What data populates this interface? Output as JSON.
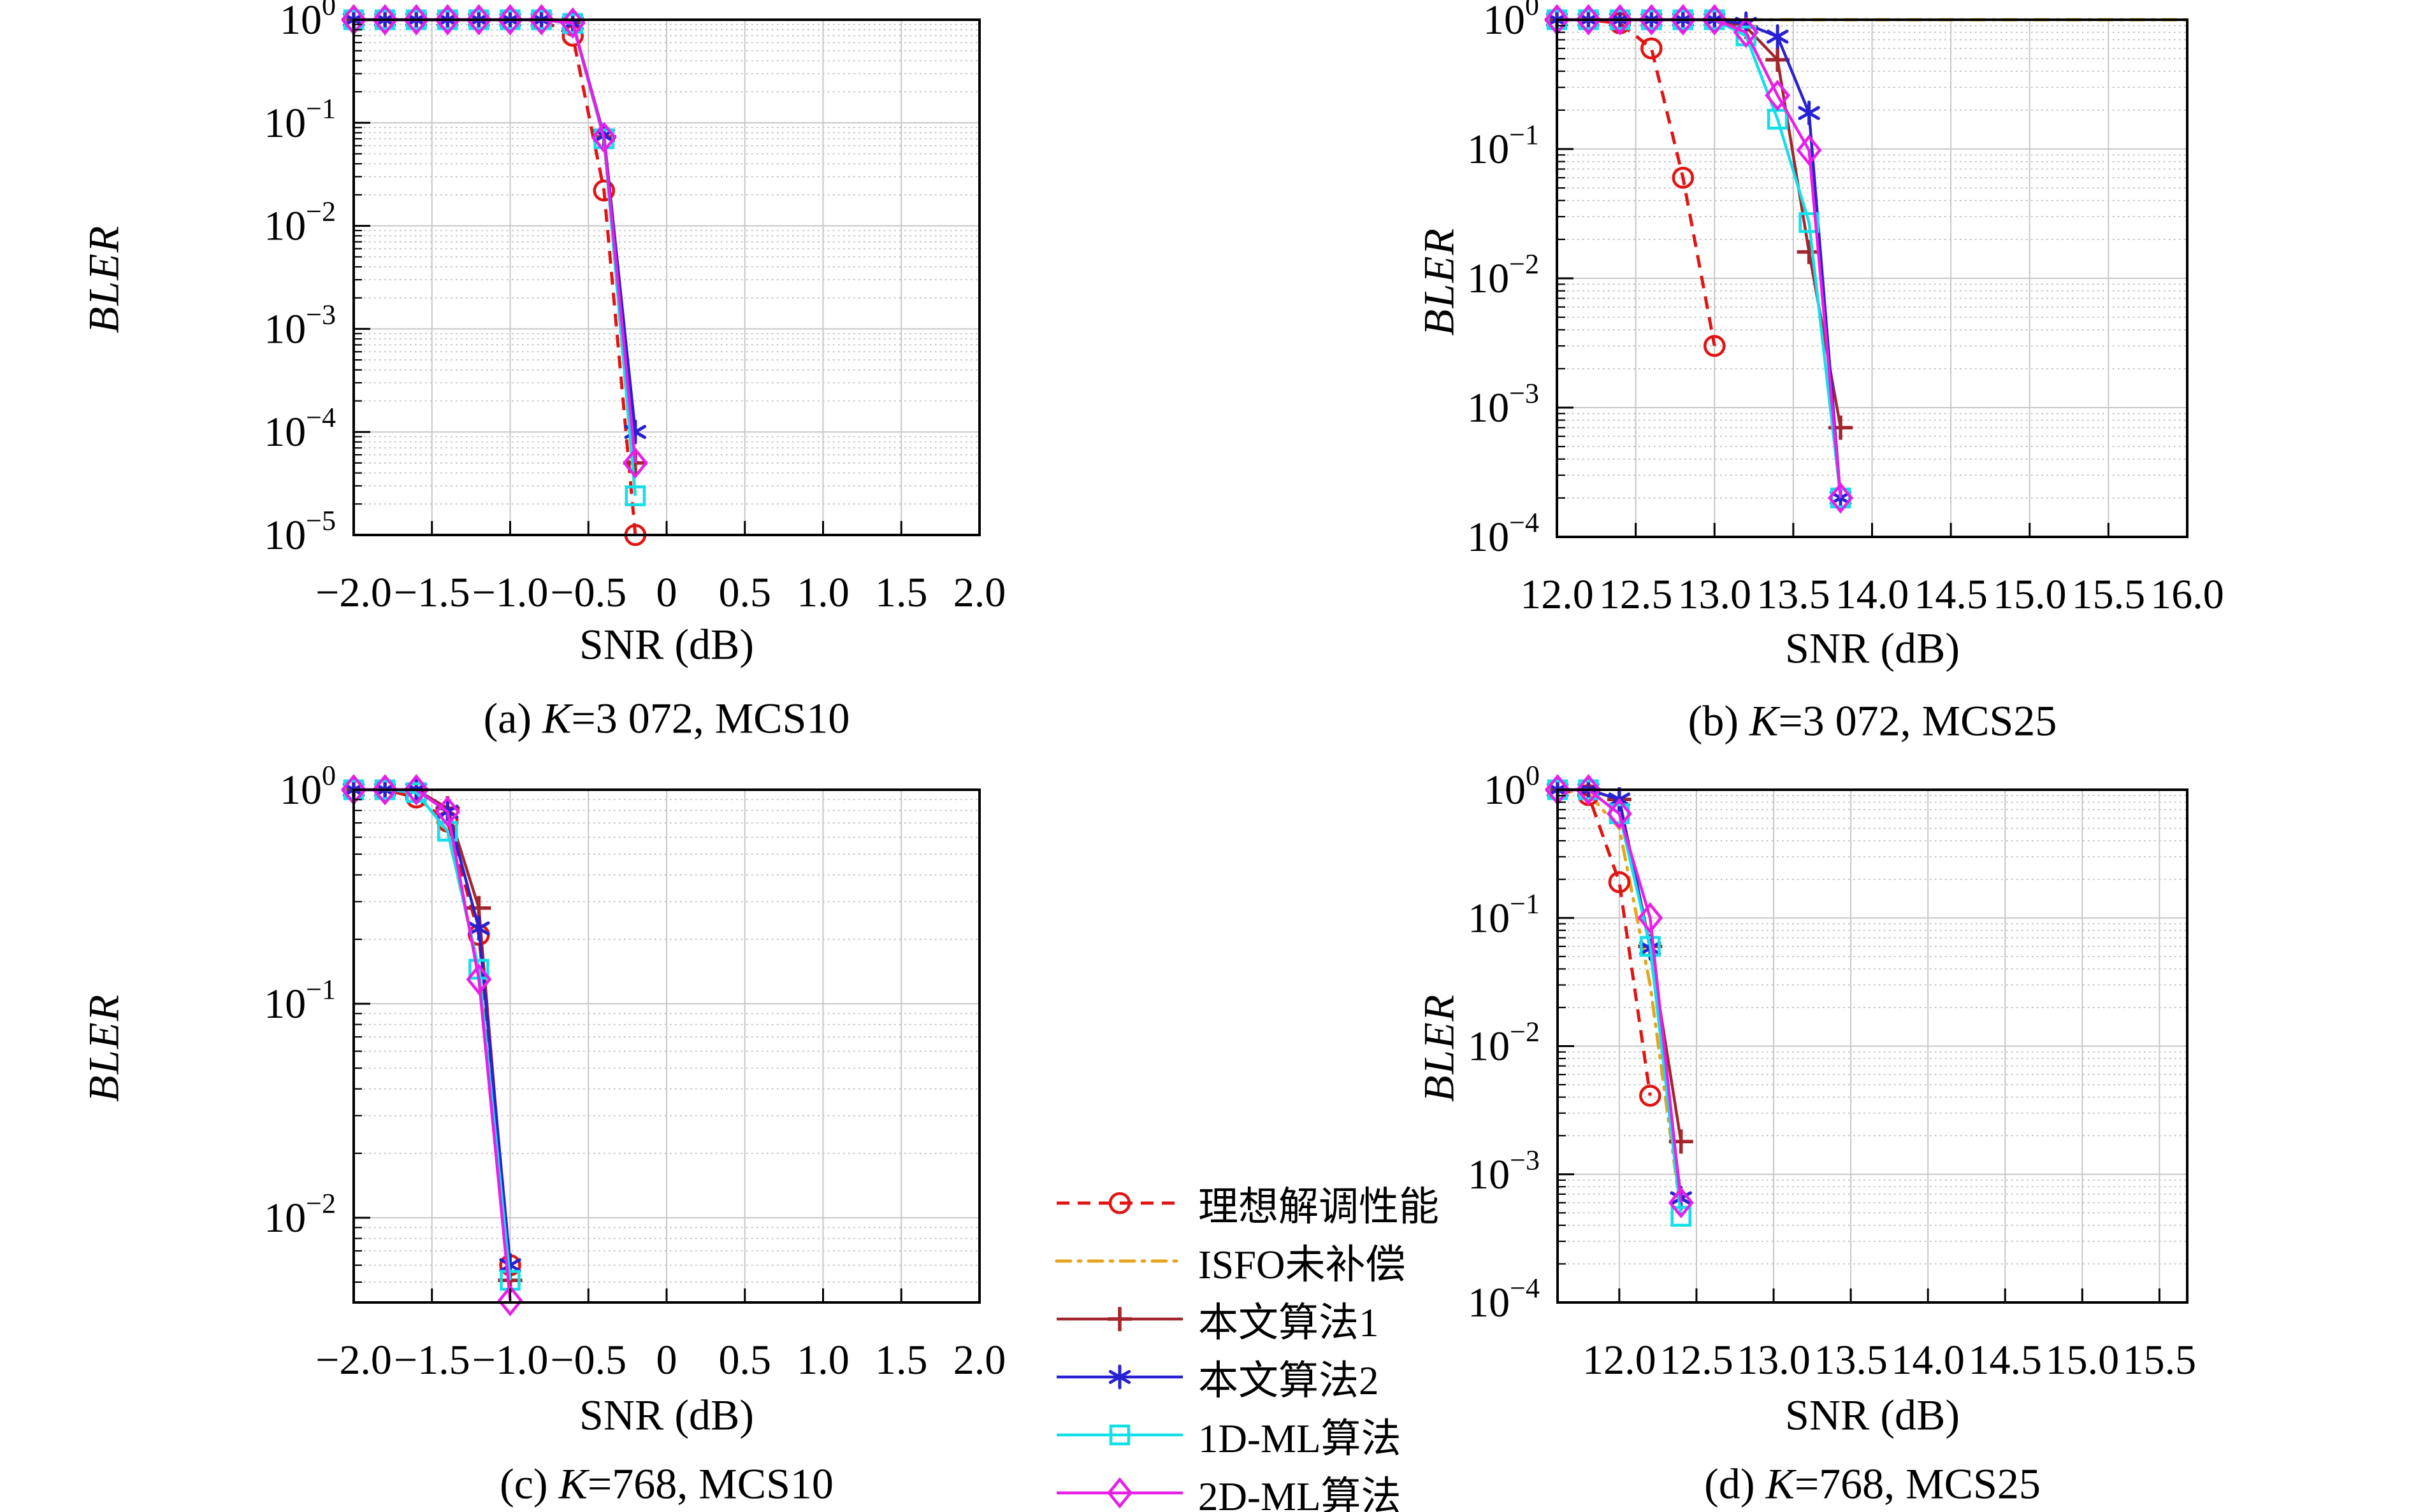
{
  "palette": {
    "ideal": "#e11414",
    "isfo": "#e5a51f",
    "alg1": "#a3262e",
    "alg2": "#2721d1",
    "ml1d": "#12dfe8",
    "ml2d": "#e81ee8",
    "frame": "#000000",
    "grid_major": "#c7c7c7",
    "grid_minor": "#b3b3b3"
  },
  "legend": {
    "items": [
      {
        "key": "ideal",
        "label": "理想解调性能",
        "marker": "circle",
        "dash": "dash"
      },
      {
        "key": "isfo",
        "label": "ISFO未补偿",
        "marker": "none",
        "dash": "dashdot"
      },
      {
        "key": "alg1",
        "label": "本文算法1",
        "marker": "plus",
        "dash": "solid"
      },
      {
        "key": "alg2",
        "label": "本文算法2",
        "marker": "asterisk",
        "dash": "solid"
      },
      {
        "key": "ml1d",
        "label": "1D-ML算法",
        "marker": "square",
        "dash": "solid"
      },
      {
        "key": "ml2d",
        "label": "2D-ML算法",
        "marker": "diamond",
        "dash": "solid"
      }
    ]
  },
  "chart_data": [
    {
      "id": "a",
      "type": "line",
      "caption_index": "(a) ",
      "caption_k": "K",
      "caption_rest": "=3 072, MCS10",
      "xlabel": "SNR (dB)",
      "ylabel": "BLER",
      "xlim": [
        -2,
        2
      ],
      "xticks": [
        -2,
        -1.5,
        -1,
        -0.5,
        0,
        0.5,
        1,
        1.5,
        2
      ],
      "xtick_labels": [
        "−2.0",
        "−1.5",
        "−1.0",
        "−0.5",
        "0",
        "0.5",
        "1.0",
        "1.5",
        "2.0"
      ],
      "ylim_exp": [
        0,
        -5
      ],
      "ytick_exps": [
        0,
        -1,
        -2,
        -3,
        -4,
        -5
      ],
      "grid": true,
      "series": [
        {
          "key": "isfo",
          "points": [
            [
              -2,
              1
            ],
            [
              -1.8,
              1
            ],
            [
              -1.6,
              1
            ],
            [
              -1.4,
              1
            ],
            [
              -1.2,
              1
            ],
            [
              -1,
              1
            ],
            [
              -0.8,
              1
            ],
            [
              -0.6,
              0.92
            ],
            [
              -0.4,
              0.07
            ],
            [
              -0.2,
              2.4e-05
            ]
          ]
        },
        {
          "key": "ideal",
          "points": [
            [
              -2,
              1
            ],
            [
              -1.8,
              1
            ],
            [
              -1.6,
              1
            ],
            [
              -1.4,
              1
            ],
            [
              -1.2,
              1
            ],
            [
              -1,
              1
            ],
            [
              -0.8,
              1
            ],
            [
              -0.6,
              0.7
            ],
            [
              -0.4,
              0.022
            ],
            [
              -0.2,
              1e-05
            ]
          ]
        },
        {
          "key": "alg1",
          "points": [
            [
              -2,
              1
            ],
            [
              -1.8,
              1
            ],
            [
              -1.6,
              1
            ],
            [
              -1.4,
              1
            ],
            [
              -1.2,
              1
            ],
            [
              -1,
              1
            ],
            [
              -0.8,
              1
            ],
            [
              -0.6,
              0.94
            ],
            [
              -0.4,
              0.073
            ],
            [
              -0.2,
              5e-05
            ]
          ]
        },
        {
          "key": "alg2",
          "points": [
            [
              -2,
              1
            ],
            [
              -1.8,
              1
            ],
            [
              -1.6,
              1
            ],
            [
              -1.4,
              1
            ],
            [
              -1.2,
              1
            ],
            [
              -1,
              1
            ],
            [
              -0.8,
              1
            ],
            [
              -0.6,
              0.93
            ],
            [
              -0.4,
              0.075
            ],
            [
              -0.2,
              0.0001
            ]
          ]
        },
        {
          "key": "ml1d",
          "points": [
            [
              -2,
              1
            ],
            [
              -1.8,
              1
            ],
            [
              -1.6,
              1
            ],
            [
              -1.4,
              1
            ],
            [
              -1.2,
              1
            ],
            [
              -1,
              1
            ],
            [
              -0.8,
              1
            ],
            [
              -0.6,
              0.92
            ],
            [
              -0.4,
              0.07
            ],
            [
              -0.2,
              2.4e-05
            ]
          ]
        },
        {
          "key": "ml2d",
          "points": [
            [
              -2,
              1
            ],
            [
              -1.8,
              1
            ],
            [
              -1.6,
              1
            ],
            [
              -1.4,
              1
            ],
            [
              -1.2,
              1
            ],
            [
              -1,
              1
            ],
            [
              -0.8,
              1
            ],
            [
              -0.6,
              0.93
            ],
            [
              -0.4,
              0.072
            ],
            [
              -0.2,
              5e-05
            ]
          ]
        }
      ]
    },
    {
      "id": "b",
      "type": "line",
      "caption_index": "(b) ",
      "caption_k": "K",
      "caption_rest": "=3 072, MCS25",
      "xlabel": "SNR (dB)",
      "ylabel": "BLER",
      "xlim": [
        12,
        16
      ],
      "xticks": [
        12,
        12.5,
        13,
        13.5,
        14,
        14.5,
        15,
        15.5,
        16
      ],
      "xtick_labels": [
        "12.0",
        "12.5",
        "13.0",
        "13.5",
        "14.0",
        "14.5",
        "15.0",
        "15.5",
        "16.0"
      ],
      "ylim_exp": [
        0,
        -4
      ],
      "ytick_exps": [
        0,
        -1,
        -2,
        -3,
        -4
      ],
      "grid": true,
      "series": [
        {
          "key": "isfo",
          "points": [
            [
              12,
              1
            ],
            [
              12.5,
              1
            ],
            [
              13,
              1
            ],
            [
              13.5,
              1
            ],
            [
              14,
              1
            ],
            [
              14.5,
              1
            ],
            [
              15,
              1
            ],
            [
              15.5,
              1
            ],
            [
              16,
              1
            ]
          ]
        },
        {
          "key": "ideal",
          "points": [
            [
              12,
              1
            ],
            [
              12.2,
              1
            ],
            [
              12.4,
              0.94
            ],
            [
              12.6,
              0.6
            ],
            [
              12.8,
              0.06
            ],
            [
              13,
              0.003
            ]
          ]
        },
        {
          "key": "alg1",
          "points": [
            [
              12,
              1
            ],
            [
              12.2,
              1
            ],
            [
              12.4,
              1
            ],
            [
              12.6,
              1
            ],
            [
              12.8,
              1
            ],
            [
              13,
              1
            ],
            [
              13.2,
              0.88
            ],
            [
              13.4,
              0.49
            ],
            [
              13.6,
              0.016
            ],
            [
              13.8,
              0.0007
            ]
          ]
        },
        {
          "key": "alg2",
          "points": [
            [
              12,
              1
            ],
            [
              12.2,
              1
            ],
            [
              12.4,
              1
            ],
            [
              12.6,
              1
            ],
            [
              12.8,
              1
            ],
            [
              13,
              1
            ],
            [
              13.2,
              0.93
            ],
            [
              13.4,
              0.74
            ],
            [
              13.6,
              0.19
            ],
            [
              13.8,
              0.0002
            ]
          ]
        },
        {
          "key": "ml1d",
          "points": [
            [
              12,
              1
            ],
            [
              12.2,
              1
            ],
            [
              12.4,
              1
            ],
            [
              12.6,
              1
            ],
            [
              12.8,
              1
            ],
            [
              13,
              1
            ],
            [
              13.2,
              0.75
            ],
            [
              13.4,
              0.17
            ],
            [
              13.6,
              0.027
            ],
            [
              13.8,
              0.0002
            ]
          ]
        },
        {
          "key": "ml2d",
          "points": [
            [
              12,
              1
            ],
            [
              12.2,
              1
            ],
            [
              12.4,
              1
            ],
            [
              12.6,
              1
            ],
            [
              12.8,
              1
            ],
            [
              13,
              1
            ],
            [
              13.2,
              0.8
            ],
            [
              13.4,
              0.26
            ],
            [
              13.6,
              0.098
            ],
            [
              13.8,
              0.0002
            ]
          ]
        }
      ]
    },
    {
      "id": "c",
      "type": "line",
      "caption_index": "(c) ",
      "caption_k": "K",
      "caption_rest": "=768, MCS10",
      "xlabel": "SNR (dB)",
      "ylabel": "BLER",
      "xlim": [
        -2,
        2
      ],
      "xticks": [
        -2,
        -1.5,
        -1,
        -0.5,
        0,
        0.5,
        1,
        1.5,
        2
      ],
      "xtick_labels": [
        "−2.0",
        "−1.5",
        "−1.0",
        "−0.5",
        "0",
        "0.5",
        "1.0",
        "1.5",
        "2.0"
      ],
      "ylim_exp": [
        0,
        -2.396
      ],
      "ytick_exps": [
        0,
        -1,
        -2
      ],
      "grid": true,
      "series": [
        {
          "key": "isfo",
          "points": [
            [
              -2,
              1
            ],
            [
              -1.8,
              1
            ],
            [
              -1.6,
              0.97
            ],
            [
              -1.4,
              0.64
            ],
            [
              -1.2,
              0.145
            ],
            [
              -1,
              0.0051
            ]
          ]
        },
        {
          "key": "ideal",
          "points": [
            [
              -2,
              1
            ],
            [
              -1.8,
              1
            ],
            [
              -1.6,
              0.92
            ],
            [
              -1.4,
              0.71
            ],
            [
              -1.2,
              0.21
            ],
            [
              -1,
              0.006
            ]
          ]
        },
        {
          "key": "alg1",
          "points": [
            [
              -2,
              1
            ],
            [
              -1.8,
              1
            ],
            [
              -1.6,
              1
            ],
            [
              -1.4,
              0.82
            ],
            [
              -1.2,
              0.28
            ],
            [
              -1,
              0.0051
            ]
          ]
        },
        {
          "key": "alg2",
          "points": [
            [
              -2,
              1
            ],
            [
              -1.8,
              1
            ],
            [
              -1.6,
              1
            ],
            [
              -1.4,
              0.79
            ],
            [
              -1.2,
              0.225
            ],
            [
              -1,
              0.006
            ]
          ]
        },
        {
          "key": "ml1d",
          "points": [
            [
              -2,
              1
            ],
            [
              -1.8,
              1
            ],
            [
              -1.6,
              0.97
            ],
            [
              -1.4,
              0.64
            ],
            [
              -1.2,
              0.145
            ],
            [
              -1,
              0.0051
            ]
          ]
        },
        {
          "key": "ml2d",
          "points": [
            [
              -2,
              1
            ],
            [
              -1.8,
              1
            ],
            [
              -1.6,
              1
            ],
            [
              -1.4,
              0.79
            ],
            [
              -1.2,
              0.13
            ],
            [
              -1,
              0.0041
            ]
          ]
        }
      ]
    },
    {
      "id": "d",
      "type": "line",
      "caption_index": "(d) ",
      "caption_k": "K",
      "caption_rest": "=768, MCS25",
      "xlabel": "SNR (dB)",
      "ylabel": "BLER",
      "xlim": [
        11.6,
        15.68
      ],
      "xticks": [
        12,
        12.5,
        13,
        13.5,
        14,
        14.5,
        15,
        15.5
      ],
      "xtick_labels": [
        "12.0",
        "12.5",
        "13.0",
        "13.5",
        "14.0",
        "14.5",
        "15.0",
        "15.5"
      ],
      "ylim_exp": [
        0,
        -4
      ],
      "ytick_exps": [
        0,
        -1,
        -2,
        -3,
        -4
      ],
      "grid": true,
      "series": [
        {
          "key": "isfo",
          "points": [
            [
              11.6,
              1
            ],
            [
              11.8,
              0.93
            ],
            [
              12,
              0.5
            ],
            [
              12.2,
              0.03
            ],
            [
              12.4,
              0.0005
            ]
          ]
        },
        {
          "key": "ideal",
          "points": [
            [
              11.6,
              1
            ],
            [
              11.8,
              0.91
            ],
            [
              12,
              0.19
            ],
            [
              12.2,
              0.0041
            ]
          ]
        },
        {
          "key": "alg1",
          "points": [
            [
              11.6,
              1
            ],
            [
              11.8,
              1
            ],
            [
              12,
              0.84
            ],
            [
              12.2,
              0.06
            ],
            [
              12.4,
              0.0018
            ]
          ]
        },
        {
          "key": "alg2",
          "points": [
            [
              11.6,
              1
            ],
            [
              11.8,
              1
            ],
            [
              12,
              0.84
            ],
            [
              12.2,
              0.058
            ],
            [
              12.4,
              0.00065
            ]
          ]
        },
        {
          "key": "ml1d",
          "points": [
            [
              11.6,
              1
            ],
            [
              11.8,
              1
            ],
            [
              12,
              0.65
            ],
            [
              12.2,
              0.06
            ],
            [
              12.4,
              0.00047
            ]
          ]
        },
        {
          "key": "ml2d",
          "points": [
            [
              11.6,
              1
            ],
            [
              11.8,
              1
            ],
            [
              12,
              0.65
            ],
            [
              12.2,
              0.1
            ],
            [
              12.4,
              0.0006
            ]
          ]
        }
      ]
    }
  ]
}
